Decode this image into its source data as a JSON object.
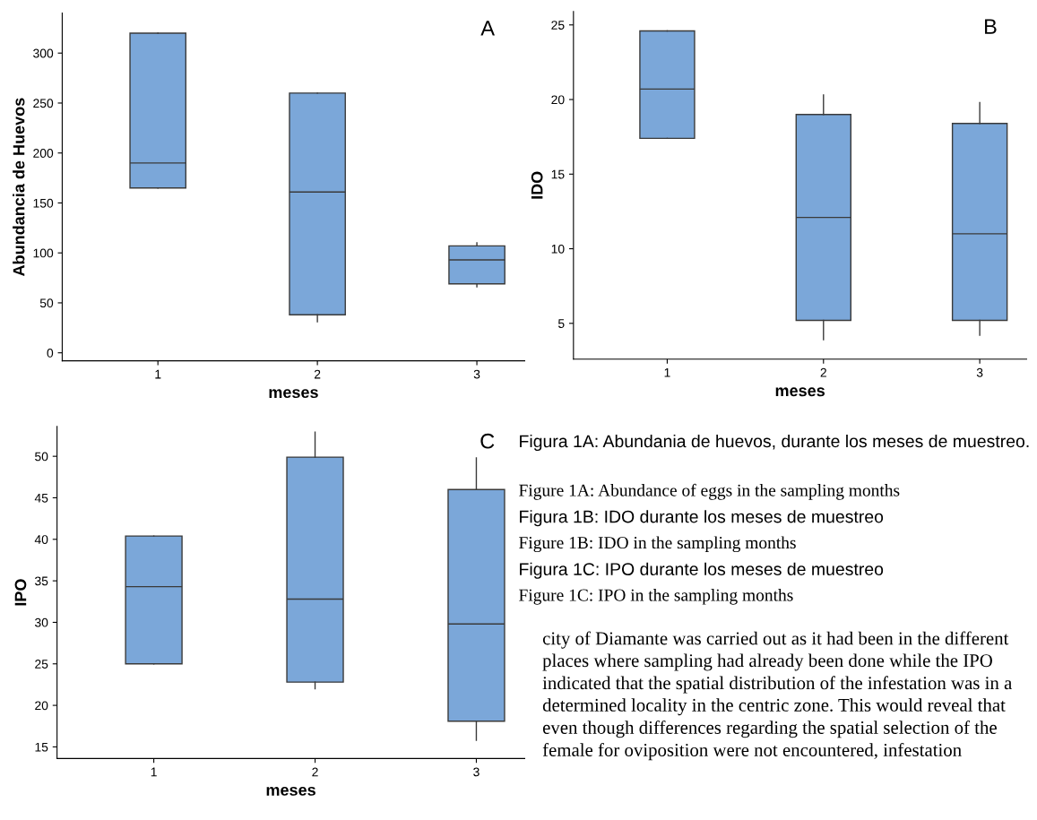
{
  "chart_data": [
    {
      "type": "box",
      "title": "A",
      "categories": [
        "1",
        "2",
        "3"
      ],
      "xlabel": "meses",
      "ylabel": "Abundancia de Huevos",
      "color": "#7ba7d9",
      "ylim": [
        -8,
        340
      ],
      "yticks": [
        0,
        50,
        100,
        150,
        200,
        250,
        300
      ],
      "grid": false,
      "boxes": [
        {
          "low": 165,
          "q1": 165,
          "median": 190,
          "q3": 320,
          "high": 320
        },
        {
          "low": 31,
          "q1": 38,
          "median": 161,
          "q3": 260,
          "high": 260
        },
        {
          "low": 66,
          "q1": 69,
          "median": 93,
          "q3": 107,
          "high": 110
        }
      ]
    },
    {
      "type": "box",
      "title": "B",
      "categories": [
        "1",
        "2",
        "3"
      ],
      "xlabel": "meses",
      "ylabel": "IDO",
      "color": "#7ba7d9",
      "ylim": [
        2.6,
        25.9
      ],
      "yticks": [
        5,
        10,
        15,
        20,
        25
      ],
      "grid": false,
      "boxes": [
        {
          "low": 17.4,
          "q1": 17.4,
          "median": 20.7,
          "q3": 24.6,
          "high": 24.6
        },
        {
          "low": 3.9,
          "q1": 5.2,
          "median": 12.1,
          "q3": 19.0,
          "high": 20.3
        },
        {
          "low": 4.2,
          "q1": 5.2,
          "median": 11.0,
          "q3": 18.4,
          "high": 19.8
        }
      ]
    },
    {
      "type": "box",
      "title": "C",
      "categories": [
        "1",
        "2",
        "3"
      ],
      "xlabel": "meses",
      "ylabel": "IPO",
      "color": "#7ba7d9",
      "ylim": [
        13.6,
        53.6
      ],
      "yticks": [
        15,
        20,
        25,
        30,
        35,
        40,
        45,
        50
      ],
      "grid": false,
      "boxes": [
        {
          "low": 25.0,
          "q1": 25.0,
          "median": 34.3,
          "q3": 40.4,
          "high": 40.4
        },
        {
          "low": 22.0,
          "q1": 22.8,
          "median": 32.8,
          "q3": 49.9,
          "high": 52.9
        },
        {
          "low": 15.8,
          "q1": 18.1,
          "median": 29.8,
          "q3": 46.0,
          "high": 49.8
        }
      ]
    },
    {
      "type": "other",
      "annotations": [
        "Figura 1A: Abundania de huevos, durante los meses de muestreo.",
        "Figure 1A: Abundance of eggs in the sampling months",
        "Figura 1B: IDO durante los meses de muestreo",
        "Figure 1B: IDO in the sampling months",
        "Figura 1C: IPO durante los meses de muestreo",
        "Figure 1C: IPO in the sampling months",
        "city of Diamante was carried out as it had been in the different places where sampling had already been done while the IPO indicated that the spatial distribution of the infestation was in a determined locality in the centric zone. This would reveal that even though differences regarding the spatial selection of the female for oviposition were not encountered, infestation"
      ]
    }
  ]
}
